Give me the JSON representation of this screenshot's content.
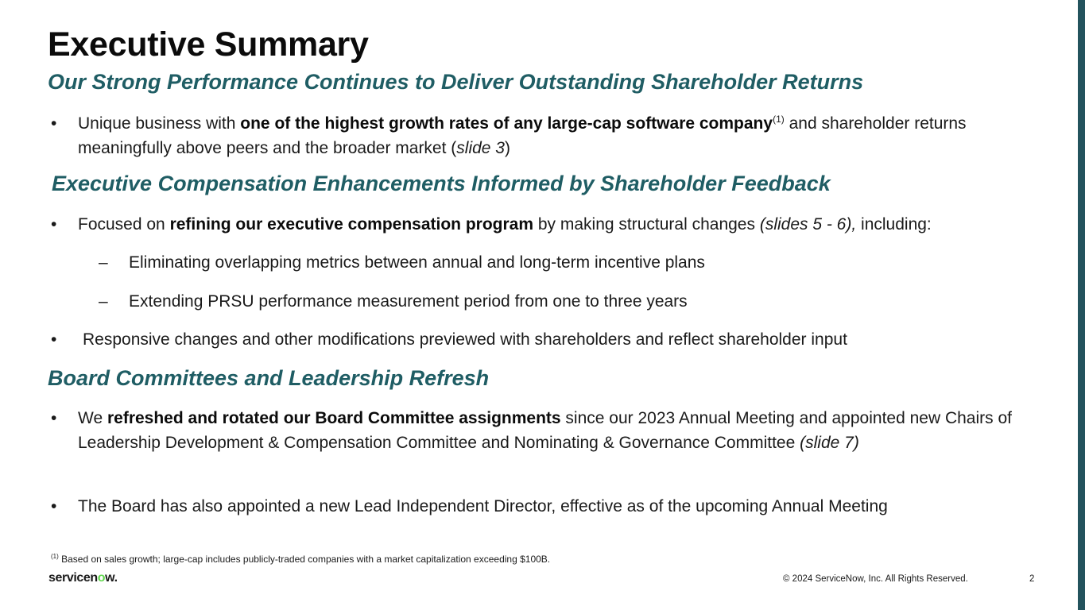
{
  "title": "Executive Summary",
  "sections": [
    {
      "heading": "Our Strong Performance Continues to Deliver Outstanding Shareholder Returns",
      "bullets": [
        {
          "pre": "Unique business with ",
          "bold": "one of the highest growth rates of any large-cap software company",
          "sup": "(1)",
          "post": " and shareholder returns meaningfully above peers and the broader market (",
          "italic": "slide 3",
          "end": ")"
        }
      ]
    },
    {
      "heading": "Executive Compensation Enhancements Informed by Shareholder Feedback",
      "bullets": [
        {
          "pre": "Focused on ",
          "bold": "refining our executive compensation program",
          "post": " by making structural changes ",
          "italic": "(slides 5 - 6),",
          "end": " including:"
        },
        {
          "text": "Responsive changes and other modifications previewed with shareholders and reflect shareholder input"
        }
      ],
      "sub_bullets": [
        "Eliminating overlapping metrics between annual and long-term incentive plans",
        "Extending PRSU performance measurement period from one to three years"
      ]
    },
    {
      "heading": "Board Committees and Leadership Refresh",
      "bullets": [
        {
          "pre": "We ",
          "bold": "refreshed and rotated our Board Committee assignments",
          "post": " since our 2023 Annual Meeting and appointed new Chairs of Leadership Development & Compensation Committee and Nominating & Governance Committee ",
          "italic": "(slide 7)"
        },
        {
          "text": "The Board has also appointed a new Lead Independent Director, effective as of the upcoming Annual Meeting"
        }
      ]
    }
  ],
  "bullet_glyph": "•",
  "dash_glyph": "–",
  "footnote": {
    "sup": "(1)",
    "text": " Based on sales growth; large-cap includes publicly-traded companies with a market capitalization exceeding $100B."
  },
  "footer": {
    "logo_pre": "servicen",
    "logo_o": "o",
    "logo_post": "w.",
    "copyright": "© 2024 ServiceNow, Inc. All Rights Reserved.",
    "page_number": "2"
  },
  "colors": {
    "heading": "#1f5d64",
    "side_bar": "#23535d",
    "logo_accent": "#62d84e"
  }
}
